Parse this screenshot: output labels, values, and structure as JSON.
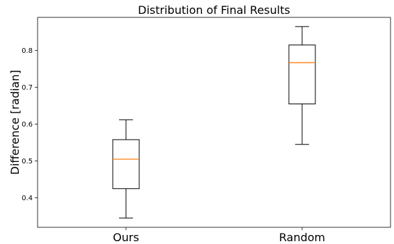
{
  "chart_data": {
    "type": "box",
    "title": "Distribution of Final Results",
    "xlabel": "",
    "ylabel": "Difference [radian]",
    "categories": [
      "Ours",
      "Random"
    ],
    "boxes": [
      {
        "label": "Ours",
        "whisker_low": 0.345,
        "q1": 0.425,
        "median": 0.505,
        "q3": 0.558,
        "whisker_high": 0.612
      },
      {
        "label": "Random",
        "whisker_low": 0.545,
        "q1": 0.655,
        "median": 0.767,
        "q3": 0.815,
        "whisker_high": 0.865
      }
    ],
    "ylim": [
      0.32,
      0.89
    ],
    "yticks": [
      0.4,
      0.5,
      0.6,
      0.7,
      0.8
    ],
    "ytick_labels": [
      "0.4",
      "0.5",
      "0.6",
      "0.7",
      "0.8"
    ],
    "grid": false,
    "median_color": "#ff7f0e",
    "box_color": "#000000"
  }
}
